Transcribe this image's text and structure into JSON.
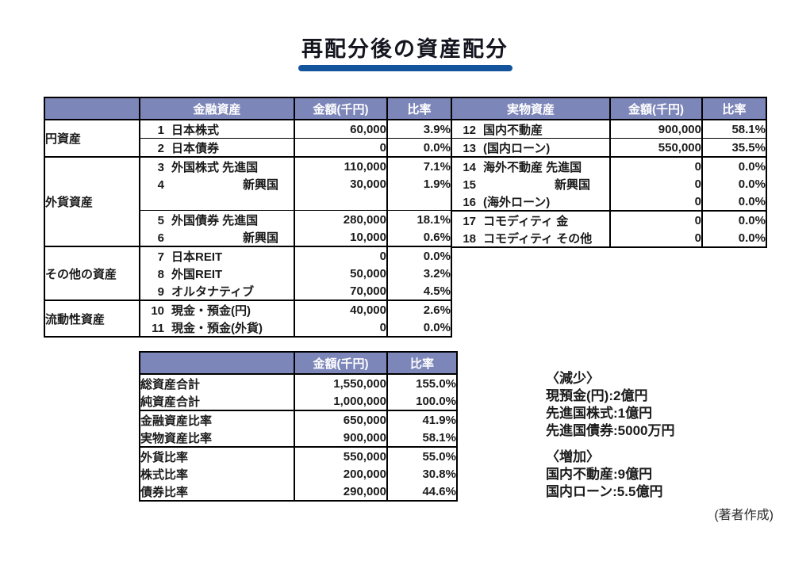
{
  "title": "再配分後の資産配分",
  "theme": {
    "header_bg": "#7d86b9",
    "header_text": "#ffffff",
    "border": "#000000",
    "text": "#1b1b1b",
    "underline": "#14549c"
  },
  "main_table": {
    "left": {
      "headers": [
        "",
        "金融資産",
        "金額(千円)",
        "比率"
      ],
      "sections": [
        {
          "category": "円資産",
          "groups": [
            {
              "rows": [
                {
                  "no": "1",
                  "label": "日本株式",
                  "amount": "60,000",
                  "ratio": "3.9%"
                }
              ]
            },
            {
              "rows": [
                {
                  "no": "2",
                  "label": "日本債券",
                  "amount": "0",
                  "ratio": "0.0%"
                }
              ]
            }
          ]
        },
        {
          "category": "外貨資産",
          "groups": [
            {
              "rows": [
                {
                  "no": "3",
                  "label": "外国株式 先進国",
                  "amount": "110,000",
                  "ratio": "7.1%"
                },
                {
                  "no": "4",
                  "label": "新興国",
                  "indent": true,
                  "amount": "30,000",
                  "ratio": "1.9%"
                },
                {
                  "no": "",
                  "label": "",
                  "amount": "",
                  "ratio": ""
                }
              ]
            },
            {
              "rows": [
                {
                  "no": "5",
                  "label": "外国債券 先進国",
                  "amount": "280,000",
                  "ratio": "18.1%"
                },
                {
                  "no": "6",
                  "label": "新興国",
                  "indent": true,
                  "amount": "10,000",
                  "ratio": "0.6%"
                }
              ]
            }
          ]
        },
        {
          "category": "その他の資産",
          "groups": [
            {
              "rows": [
                {
                  "no": "7",
                  "label": "日本REIT",
                  "amount": "0",
                  "ratio": "0.0%"
                },
                {
                  "no": "8",
                  "label": "外国REIT",
                  "amount": "50,000",
                  "ratio": "3.2%"
                },
                {
                  "no": "9",
                  "label": "オルタナティブ",
                  "amount": "70,000",
                  "ratio": "4.5%"
                }
              ]
            }
          ]
        },
        {
          "category": "流動性資産",
          "groups": [
            {
              "rows": [
                {
                  "no": "10",
                  "label": "現金・預金(円)",
                  "amount": "40,000",
                  "ratio": "2.6%"
                },
                {
                  "no": "11",
                  "label": "現金・預金(外貨)",
                  "amount": "0",
                  "ratio": "0.0%"
                }
              ]
            }
          ]
        }
      ]
    },
    "right": {
      "headers": [
        "実物資産",
        "金額(千円)",
        "比率"
      ],
      "groups": [
        {
          "divider": "none",
          "rows": [
            {
              "no": "12",
              "label": "国内不動産",
              "amount": "900,000",
              "ratio": "58.1%"
            }
          ]
        },
        {
          "divider": "thin",
          "rows": [
            {
              "no": "13",
              "label": "(国内ローン)",
              "amount": "550,000",
              "ratio": "35.5%"
            }
          ]
        },
        {
          "divider": "thick",
          "rows": [
            {
              "no": "14",
              "label": "海外不動産 先進国",
              "amount": "0",
              "ratio": "0.0%"
            },
            {
              "no": "15",
              "label": "新興国",
              "indent": true,
              "amount": "0",
              "ratio": "0.0%"
            },
            {
              "no": "16",
              "label": "(海外ローン)",
              "amount": "0",
              "ratio": "0.0%"
            }
          ]
        },
        {
          "divider": "thick",
          "rows": [
            {
              "no": "17",
              "label": "コモディティ 金",
              "amount": "0",
              "ratio": "0.0%"
            },
            {
              "no": "18",
              "label": "コモディティ その他",
              "amount": "0",
              "ratio": "0.0%"
            }
          ]
        }
      ]
    }
  },
  "summary_table": {
    "headers": [
      "",
      "金額(千円)",
      "比率"
    ],
    "groups": [
      {
        "rows": [
          {
            "label": "総資産合計",
            "amount": "1,550,000",
            "ratio": "155.0%"
          },
          {
            "label": "純資産合計",
            "amount": "1,000,000",
            "ratio": "100.0%"
          }
        ]
      },
      {
        "rows": [
          {
            "label": "金融資産比率",
            "amount": "650,000",
            "ratio": "41.9%"
          },
          {
            "label": "実物資産比率",
            "amount": "900,000",
            "ratio": "58.1%"
          }
        ]
      },
      {
        "rows": [
          {
            "label": "外貨比率",
            "amount": "550,000",
            "ratio": "55.0%"
          },
          {
            "label": "株式比率",
            "amount": "200,000",
            "ratio": "30.8%"
          },
          {
            "label": "債券比率",
            "amount": "290,000",
            "ratio": "44.6%"
          }
        ]
      }
    ]
  },
  "notes": {
    "decrease": {
      "heading": "〈減少〉",
      "items": [
        "現預金(円):2億円",
        "先進国株式:1億円",
        "先進国債券:5000万円"
      ]
    },
    "increase": {
      "heading": "〈増加〉",
      "items": [
        "国内不動産:9億円",
        "国内ローン:5.5億円"
      ]
    }
  },
  "credit": "(著者作成)"
}
